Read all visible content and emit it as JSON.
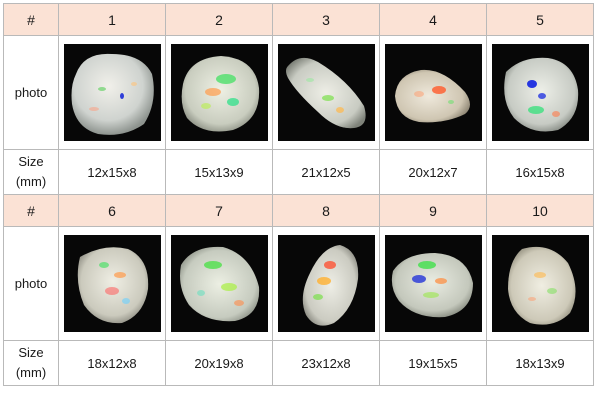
{
  "header_label": "#",
  "photo_label": "photo",
  "size_label": [
    "Size",
    "(mm)"
  ],
  "rows": [
    {
      "stones": [
        {
          "number": "1",
          "size": "12x15x8"
        },
        {
          "number": "2",
          "size": "15x13x9"
        },
        {
          "number": "3",
          "size": "21x12x5"
        },
        {
          "number": "4",
          "size": "20x12x7"
        },
        {
          "number": "5",
          "size": "16x15x8"
        }
      ]
    },
    {
      "stones": [
        {
          "number": "6",
          "size": "18x12x8"
        },
        {
          "number": "7",
          "size": "20x19x8"
        },
        {
          "number": "8",
          "size": "23x12x8"
        },
        {
          "number": "9",
          "size": "19x15x5"
        },
        {
          "number": "10",
          "size": "18x13x9"
        }
      ]
    }
  ]
}
